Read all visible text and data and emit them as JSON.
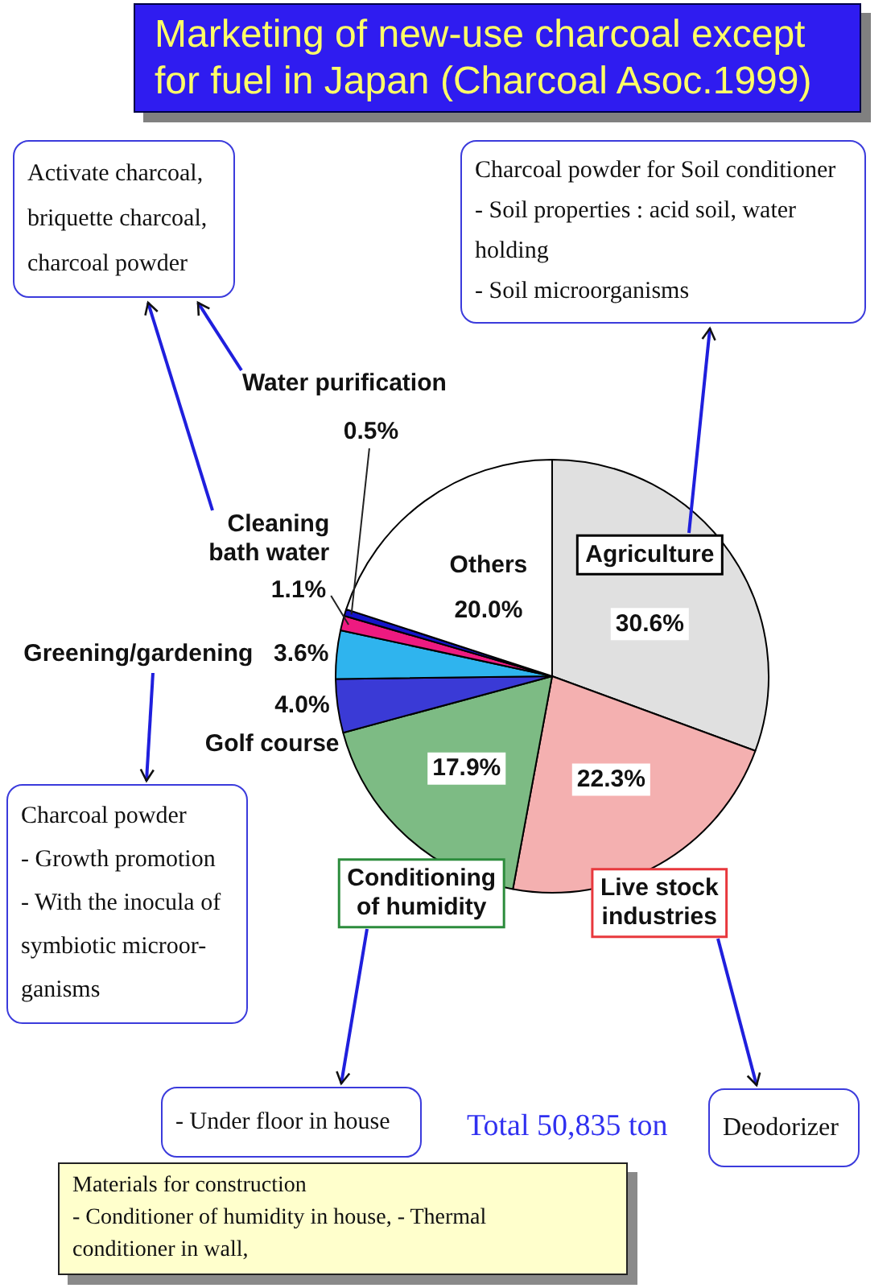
{
  "chart_data": {
    "type": "pie",
    "title": "Marketing of new-use charcoal except for fuel in Japan (Charcoal Asoc.1999)",
    "categories": [
      "Agriculture",
      "Live stock industries",
      "Conditioning of humidity",
      "Golf course",
      "Greening/gardening",
      "Cleaning bath water",
      "Water purification",
      "Others"
    ],
    "values": [
      30.6,
      22.3,
      17.9,
      4.0,
      3.6,
      1.1,
      0.5,
      20.0
    ],
    "value_labels": [
      "30.6%",
      "22.3%",
      "17.9%",
      "4.0%",
      "3.6%",
      "1.1%",
      "0.5%",
      "20.0%"
    ],
    "colors": [
      "#e0e0e0",
      "#f4b0b0",
      "#7dbb84",
      "#3a3ad6",
      "#2fb4ee",
      "#ee1a80",
      "#1414c8",
      "#ffffff"
    ],
    "legend": false,
    "annotations": [
      "Activate charcoal,\nbriquette charcoal,\ncharcoal powder",
      "Charcoal powder for Soil conditioner\n- Soil properties : acid soil, water\nholding\n- Soil microorganisms",
      "Charcoal powder\n- Growth promotion\n- With the inocula of\nsymbiotic microor-\nganisms",
      "- Under floor in house",
      "Total 50,835 ton",
      "Deodorizer",
      "Materials for construction\n- Conditioner of humidity in house, - Thermal\nconditioner in wall,"
    ]
  }
}
